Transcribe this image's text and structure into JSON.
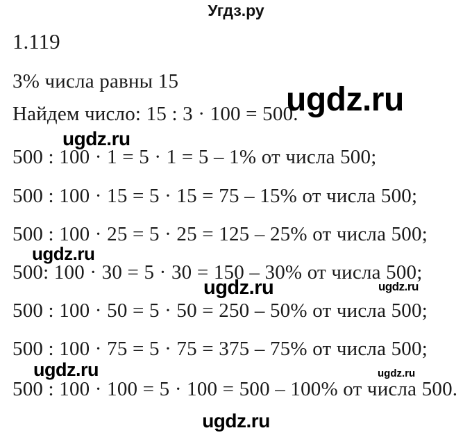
{
  "page": {
    "site_title": "Угдз.ру",
    "problem_number": "1.119",
    "given": "3% числа равны 15",
    "solution_intro": "Найдем число: 15 : 3 · 100 = 500.",
    "equations": [
      "500 : 100 · 1 = 5 · 1 = 5 – 1% от числа 500;",
      "500 : 100 · 15 = 5 · 15 = 75 – 15% от числа 500;",
      "500 : 100 · 25 = 5 · 25 = 125 – 25% от числа 500;",
      "500: 100 · 30 = 5 · 30 = 150 – 30% от числа 500;",
      "500 : 100 · 50 = 5 · 50 = 250 – 50% от числа 500;",
      "500 : 100 · 75 = 5 · 75 = 375 – 75% от числа 500;",
      "500 : 100 · 100 = 5 · 100 = 500 – 100% от числа 500."
    ],
    "watermark_text": "ugdz.ru",
    "footer_text": "ugdz.ru",
    "colors": {
      "background": "#ffffff",
      "text": "#1a1a1a",
      "watermark": "#000000"
    }
  }
}
